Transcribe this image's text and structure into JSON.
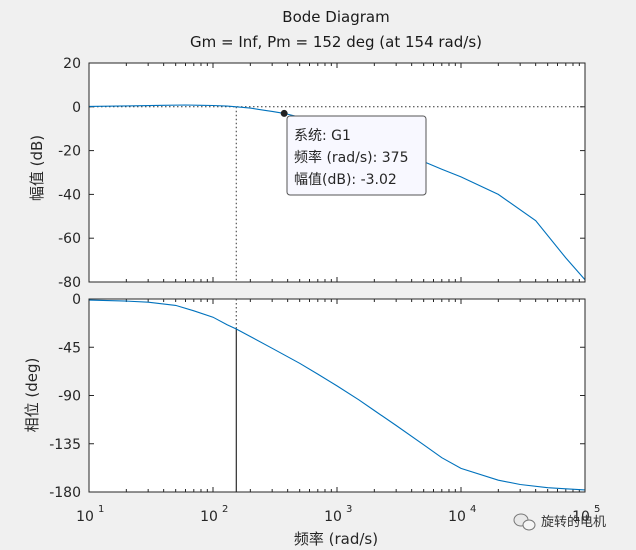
{
  "chart_data": {
    "type": "line",
    "title": "Bode Diagram",
    "subtitle": "Gm = Inf,  Pm = 152 deg (at 154 rad/s)",
    "xlabel": "频率  (rad/s)",
    "xscale": "log",
    "xlim": [
      10,
      100000
    ],
    "x_ticks": [
      10,
      100,
      1000,
      10000,
      100000
    ],
    "x_tick_labels": [
      [
        "10",
        "1"
      ],
      [
        "10",
        "2"
      ],
      [
        "10",
        "3"
      ],
      [
        "10",
        "4"
      ],
      [
        "10",
        "5"
      ]
    ],
    "grid": false,
    "panels": [
      {
        "name": "magnitude",
        "ylabel": "幅值 (dB)",
        "ylim": [
          -80,
          20
        ],
        "y_ticks": [
          20,
          0,
          -20,
          -40,
          -60,
          -80
        ],
        "y_tick_labels": [
          "20",
          "0",
          "-20",
          "-40",
          "-60",
          "-80"
        ],
        "reference_line": 0,
        "marker_x": 154,
        "series": [
          {
            "color": "#0072bd",
            "x": [
              10,
              20,
              40,
              60,
              80,
              100,
              130,
              154,
              200,
              260,
              300,
              375,
              500,
              700,
              1000,
              1500,
              2000,
              3000,
              5000,
              7000,
              10000,
              20000,
              40000,
              70000,
              100000
            ],
            "y": [
              0.2,
              0.4,
              0.7,
              0.8,
              0.7,
              0.6,
              0.3,
              0.0,
              -0.6,
              -1.6,
              -2.1,
              -3.02,
              -4.7,
              -7.2,
              -10.2,
              -13.5,
              -16.2,
              -20.1,
              -25.0,
              -28.5,
              -32.0,
              -40.0,
              -52.0,
              -69.0,
              -79.0
            ]
          }
        ],
        "datatip": {
          "x": 375,
          "y": -3.02,
          "lines": [
            "系统: G1",
            "频率 (rad/s): 375",
            "幅值(dB): -3.02"
          ]
        }
      },
      {
        "name": "phase",
        "ylabel": "相位 (deg)",
        "ylim": [
          -180,
          0
        ],
        "y_ticks": [
          0,
          -45,
          -90,
          -135,
          -180
        ],
        "y_tick_labels": [
          "0",
          "-45",
          "-90",
          "-135",
          "-180"
        ],
        "reference_line": -180,
        "marker_x": 154,
        "marker_y": -28,
        "series": [
          {
            "color": "#0072bd",
            "x": [
              10,
              20,
              30,
              50,
              70,
              100,
              130,
              154,
              200,
              300,
              500,
              700,
              1000,
              1500,
              2000,
              3000,
              5000,
              7000,
              10000,
              20000,
              30000,
              50000,
              70000,
              100000
            ],
            "y": [
              -1,
              -2,
              -3,
              -6,
              -11,
              -17,
              -24,
              -28,
              -35,
              -46,
              -60,
              -70,
              -81,
              -94,
              -104,
              -118,
              -136,
              -148,
              -158,
              -169,
              -173,
              -176,
              -177,
              -178
            ]
          }
        ]
      }
    ]
  },
  "watermark": {
    "text": "旋转的电机",
    "icon": "wechat-icon"
  },
  "colors": {
    "background": "#f0f0f0",
    "axes": "#ffffff",
    "line": "#0072bd",
    "tip_bg": "#f8f8ff"
  }
}
